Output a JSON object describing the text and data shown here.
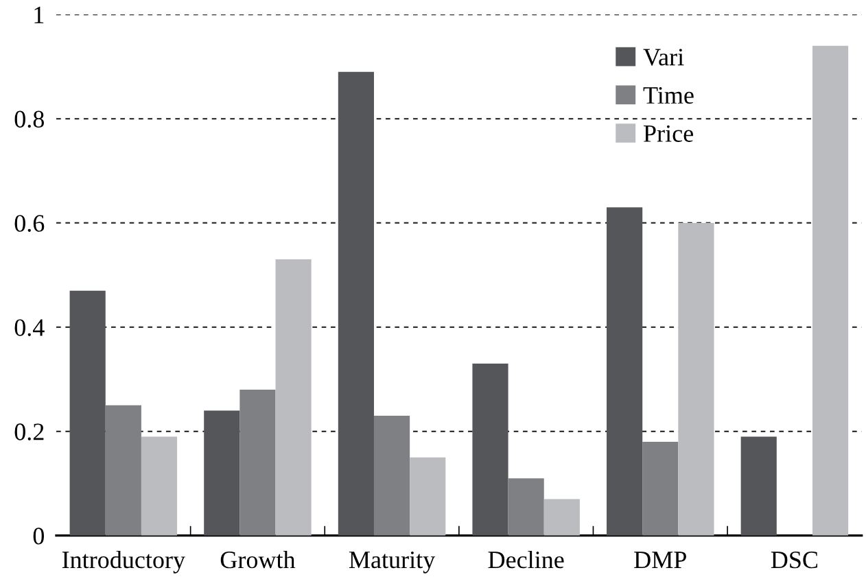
{
  "chart_data": {
    "type": "bar",
    "categories": [
      "Introductory",
      "Growth",
      "Maturity",
      "Decline",
      "DMP",
      "DSC"
    ],
    "series": [
      {
        "name": "Vari",
        "color": "#555659",
        "values": [
          0.47,
          0.24,
          0.89,
          0.33,
          0.63,
          0.19
        ]
      },
      {
        "name": "Time",
        "color": "#7f8084",
        "values": [
          0.25,
          0.28,
          0.23,
          0.11,
          0.18,
          null
        ]
      },
      {
        "name": "Price",
        "color": "#bbbcc0",
        "values": [
          0.19,
          0.53,
          0.15,
          0.07,
          0.6,
          0.94
        ]
      }
    ],
    "ylim": [
      0,
      1
    ],
    "yticks": [
      0,
      0.2,
      0.4,
      0.6,
      0.8,
      1
    ],
    "grid": "y",
    "legend": "top right"
  }
}
